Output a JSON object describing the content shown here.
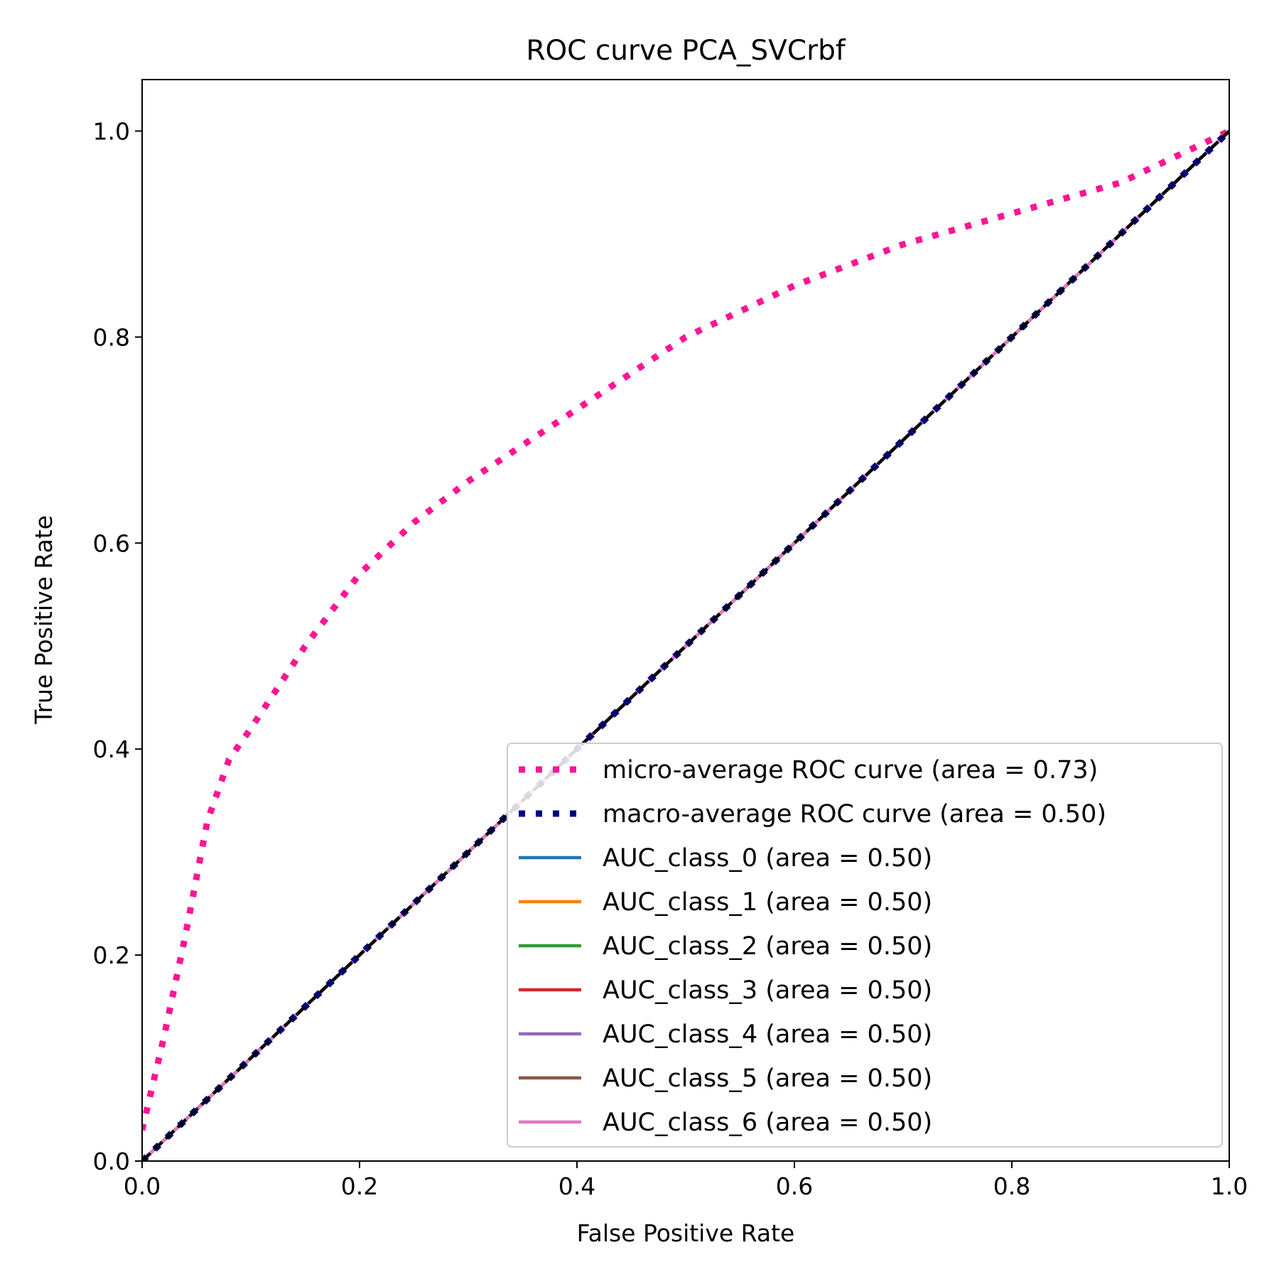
{
  "chart_data": {
    "type": "line",
    "title": "ROC curve PCA_SVCrbf",
    "xlabel": "False Positive Rate",
    "ylabel": "True Positive Rate",
    "xlim": [
      0.0,
      1.0
    ],
    "ylim": [
      0.0,
      1.05
    ],
    "xticks": [
      0.0,
      0.2,
      0.4,
      0.6,
      0.8,
      1.0
    ],
    "yticks": [
      0.0,
      0.2,
      0.4,
      0.6,
      0.8,
      1.0
    ],
    "xtick_labels": [
      "0.0",
      "0.2",
      "0.4",
      "0.6",
      "0.8",
      "1.0"
    ],
    "ytick_labels": [
      "0.0",
      "0.2",
      "0.4",
      "0.6",
      "0.8",
      "1.0"
    ],
    "grid": false,
    "legend_position": "lower right",
    "series": [
      {
        "name": "micro-average ROC curve (area = 0.73)",
        "color": "#ff1493",
        "style": "dotted",
        "x": [
          0.0,
          0.02,
          0.04,
          0.06,
          0.08,
          0.1,
          0.15,
          0.2,
          0.25,
          0.3,
          0.4,
          0.5,
          0.6,
          0.7,
          0.8,
          0.9,
          1.0
        ],
        "y": [
          0.03,
          0.12,
          0.22,
          0.33,
          0.39,
          0.42,
          0.5,
          0.57,
          0.62,
          0.66,
          0.73,
          0.8,
          0.85,
          0.89,
          0.92,
          0.95,
          1.0
        ]
      },
      {
        "name": "macro-average ROC curve (area = 0.50)",
        "color": "#000080",
        "style": "dotted",
        "x": [
          0.0,
          1.0
        ],
        "y": [
          0.0,
          1.0
        ]
      },
      {
        "name": "AUC_class_0 (area = 0.50)",
        "color": "#1f77b4",
        "style": "solid",
        "x": [
          0.0,
          1.0
        ],
        "y": [
          0.0,
          1.0
        ]
      },
      {
        "name": "AUC_class_1 (area = 0.50)",
        "color": "#ff7f0e",
        "style": "solid",
        "x": [
          0.0,
          1.0
        ],
        "y": [
          0.0,
          1.0
        ]
      },
      {
        "name": "AUC_class_2 (area = 0.50)",
        "color": "#2ca02c",
        "style": "solid",
        "x": [
          0.0,
          1.0
        ],
        "y": [
          0.0,
          1.0
        ]
      },
      {
        "name": "AUC_class_3 (area = 0.50)",
        "color": "#d62728",
        "style": "solid",
        "x": [
          0.0,
          1.0
        ],
        "y": [
          0.0,
          1.0
        ]
      },
      {
        "name": "AUC_class_4 (area = 0.50)",
        "color": "#9467bd",
        "style": "solid",
        "x": [
          0.0,
          1.0
        ],
        "y": [
          0.0,
          1.0
        ]
      },
      {
        "name": "AUC_class_5 (area = 0.50)",
        "color": "#8c564b",
        "style": "solid",
        "x": [
          0.0,
          1.0
        ],
        "y": [
          0.0,
          1.0
        ]
      },
      {
        "name": "AUC_class_6 (area = 0.50)",
        "color": "#e377c2",
        "style": "solid",
        "x": [
          0.0,
          1.0
        ],
        "y": [
          0.0,
          1.0
        ]
      }
    ],
    "reference_line": {
      "color": "#000000",
      "style": "dashed",
      "x": [
        0.0,
        1.0
      ],
      "y": [
        0.0,
        1.0
      ]
    }
  }
}
